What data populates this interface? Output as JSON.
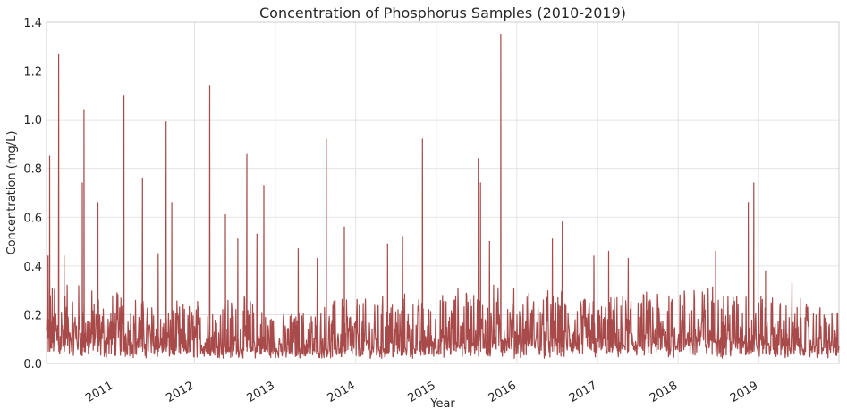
{
  "chart_data": {
    "type": "line",
    "title": "Concentration of Phosphorus Samples (2010-2019)",
    "xlabel": "Year",
    "ylabel": "Concentration (mg/L)",
    "x_ticks": [
      "2011",
      "2012",
      "2013",
      "2014",
      "2015",
      "2016",
      "2017",
      "2018",
      "2019"
    ],
    "y_ticks": [
      "0.0",
      "0.2",
      "0.4",
      "0.6",
      "0.8",
      "1.0",
      "1.2",
      "1.4"
    ],
    "xlim": [
      "2010-03-01",
      "2019-12-31"
    ],
    "ylim": [
      0,
      1.4
    ],
    "grid": true,
    "series": [
      {
        "color": "#a84a4a",
        "baseline": [
          0.09,
          0.09,
          0.08,
          0.08,
          0.05,
          0.04,
          0.04,
          0.04,
          0.03,
          0.03,
          0.03,
          0.03,
          0.04,
          0.05,
          0.06,
          0.07,
          0.07,
          0.07,
          0.06,
          0.05,
          0.05,
          0.06,
          0.08,
          0.08,
          0.07,
          0.05,
          0.05,
          0.04
        ],
        "noise_amplitude": [
          0.26,
          0.26,
          0.22,
          0.22,
          0.18,
          0.22,
          0.24,
          0.22,
          0.16,
          0.2,
          0.24,
          0.22,
          0.26,
          0.2,
          0.26,
          0.26,
          0.24,
          0.24,
          0.22,
          0.22,
          0.24,
          0.26,
          0.26,
          0.26,
          0.24,
          0.22,
          0.2,
          0.18
        ],
        "peaks": [
          {
            "x": "2010-03-08",
            "y": 0.44
          },
          {
            "x": "2010-03-15",
            "y": 0.85
          },
          {
            "x": "2010-04-25",
            "y": 1.27
          },
          {
            "x": "2010-05-20",
            "y": 0.44
          },
          {
            "x": "2010-08-10",
            "y": 0.74
          },
          {
            "x": "2010-08-18",
            "y": 1.04
          },
          {
            "x": "2010-10-20",
            "y": 0.66
          },
          {
            "x": "2011-02-15",
            "y": 1.1
          },
          {
            "x": "2011-05-10",
            "y": 0.76
          },
          {
            "x": "2011-07-20",
            "y": 0.45
          },
          {
            "x": "2011-08-25",
            "y": 0.99
          },
          {
            "x": "2011-09-20",
            "y": 0.66
          },
          {
            "x": "2012-03-10",
            "y": 1.14
          },
          {
            "x": "2012-05-20",
            "y": 0.61
          },
          {
            "x": "2012-07-15",
            "y": 0.51
          },
          {
            "x": "2012-08-25",
            "y": 0.86
          },
          {
            "x": "2012-10-10",
            "y": 0.53
          },
          {
            "x": "2012-11-10",
            "y": 0.73
          },
          {
            "x": "2013-04-15",
            "y": 0.47
          },
          {
            "x": "2013-07-10",
            "y": 0.43
          },
          {
            "x": "2013-08-20",
            "y": 0.92
          },
          {
            "x": "2013-11-10",
            "y": 0.56
          },
          {
            "x": "2014-05-25",
            "y": 0.49
          },
          {
            "x": "2014-08-01",
            "y": 0.52
          },
          {
            "x": "2014-10-30",
            "y": 0.92
          },
          {
            "x": "2015-07-10",
            "y": 0.84
          },
          {
            "x": "2015-07-20",
            "y": 0.74
          },
          {
            "x": "2015-08-30",
            "y": 0.5
          },
          {
            "x": "2015-10-20",
            "y": 1.35
          },
          {
            "x": "2016-06-10",
            "y": 0.51
          },
          {
            "x": "2016-07-25",
            "y": 0.58
          },
          {
            "x": "2016-12-15",
            "y": 0.44
          },
          {
            "x": "2017-02-20",
            "y": 0.46
          },
          {
            "x": "2017-05-20",
            "y": 0.43
          },
          {
            "x": "2018-06-20",
            "y": 0.46
          },
          {
            "x": "2018-11-15",
            "y": 0.66
          },
          {
            "x": "2018-12-10",
            "y": 0.74
          },
          {
            "x": "2019-02-01",
            "y": 0.38
          },
          {
            "x": "2019-06-01",
            "y": 0.33
          }
        ]
      }
    ]
  }
}
